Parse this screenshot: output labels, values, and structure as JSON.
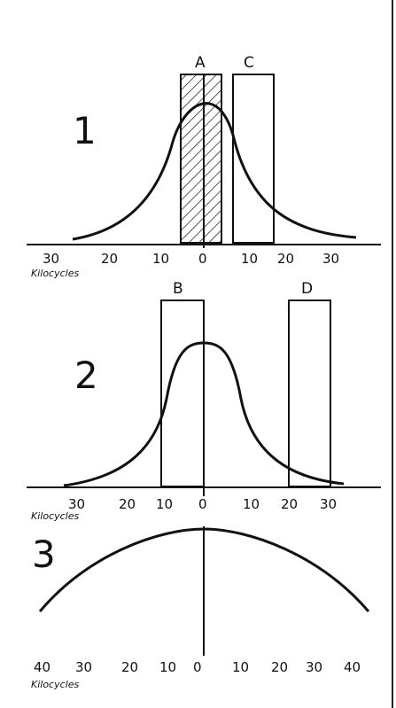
{
  "panels": [
    {
      "number": "1",
      "unit_label": "Kilocycles",
      "ticks": [
        "30",
        "20",
        "10",
        "0",
        "10",
        "20",
        "30"
      ],
      "bands": [
        {
          "label": "A",
          "from_kc": -5,
          "to_kc": 4,
          "hatched": true
        },
        {
          "label": "C",
          "from_kc": 7,
          "to_kc": 17,
          "hatched": false
        }
      ]
    },
    {
      "number": "2",
      "unit_label": "Kilocycles",
      "ticks": [
        "30",
        "20",
        "10",
        "0",
        "10",
        "20",
        "30"
      ],
      "bands": [
        {
          "label": "B",
          "from_kc": -10,
          "to_kc": 0,
          "hatched": false
        },
        {
          "label": "D",
          "from_kc": 20,
          "to_kc": 30,
          "hatched": false
        }
      ]
    },
    {
      "number": "3",
      "unit_label": "Kilocycles",
      "ticks": [
        "40",
        "30",
        "20",
        "10",
        "0",
        "10",
        "20",
        "30",
        "40"
      ]
    }
  ]
}
